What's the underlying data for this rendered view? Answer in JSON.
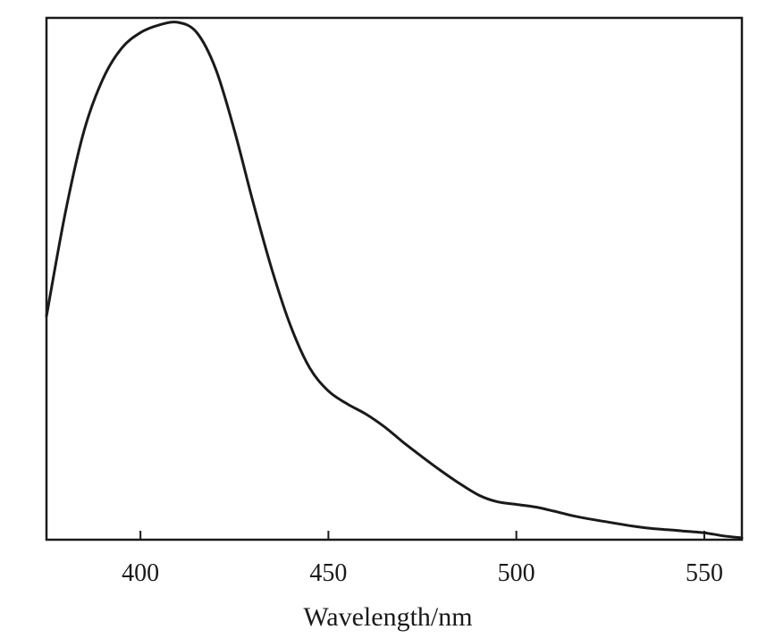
{
  "chart_data": {
    "type": "line",
    "title": "",
    "xlabel": "Wavelength/nm",
    "ylabel": "",
    "xlim": [
      375,
      560
    ],
    "ylim": [
      0,
      1
    ],
    "x_ticks": [
      400,
      450,
      500,
      550
    ],
    "y_ticks": [],
    "grid": false,
    "legend": "none",
    "series": [
      {
        "color": "#1a1a1a",
        "points": [
          [
            375,
            0.43
          ],
          [
            380,
            0.63
          ],
          [
            385,
            0.79
          ],
          [
            390,
            0.89
          ],
          [
            395,
            0.95
          ],
          [
            400,
            0.98
          ],
          [
            405,
            0.995
          ],
          [
            410,
            1.0
          ],
          [
            415,
            0.98
          ],
          [
            420,
            0.91
          ],
          [
            425,
            0.79
          ],
          [
            430,
            0.65
          ],
          [
            435,
            0.52
          ],
          [
            440,
            0.41
          ],
          [
            445,
            0.33
          ],
          [
            450,
            0.285
          ],
          [
            455,
            0.26
          ],
          [
            460,
            0.24
          ],
          [
            465,
            0.215
          ],
          [
            470,
            0.185
          ],
          [
            475,
            0.157
          ],
          [
            480,
            0.13
          ],
          [
            485,
            0.105
          ],
          [
            490,
            0.083
          ],
          [
            495,
            0.07
          ],
          [
            500,
            0.065
          ],
          [
            505,
            0.06
          ],
          [
            510,
            0.052
          ],
          [
            515,
            0.043
          ],
          [
            520,
            0.036
          ],
          [
            525,
            0.03
          ],
          [
            530,
            0.024
          ],
          [
            535,
            0.019
          ],
          [
            540,
            0.016
          ],
          [
            545,
            0.013
          ],
          [
            550,
            0.01
          ],
          [
            555,
            0.004
          ],
          [
            560,
            0.0
          ]
        ]
      }
    ]
  }
}
